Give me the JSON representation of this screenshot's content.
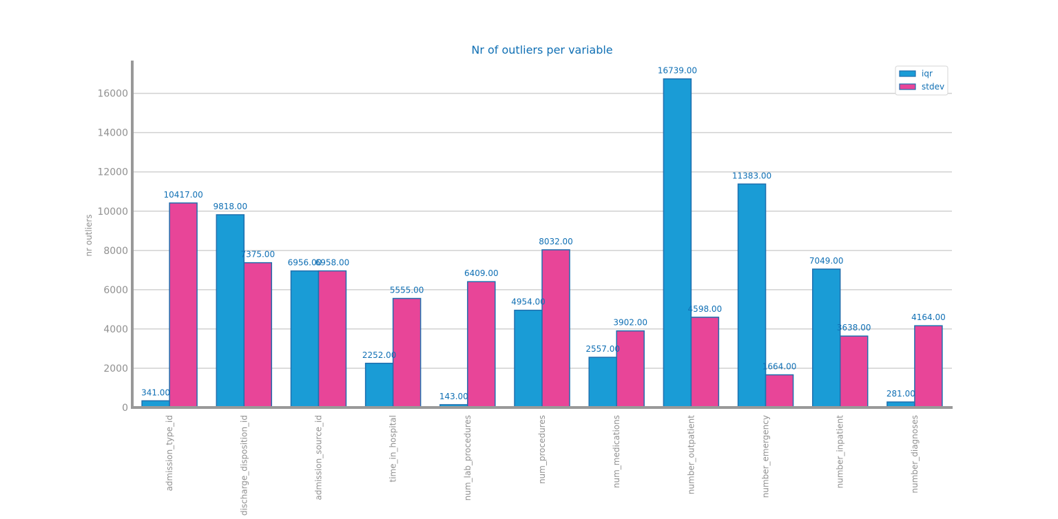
{
  "chart_data": {
    "type": "bar",
    "title": "Nr of outliers per variable",
    "xlabel": "",
    "ylabel": "nr outliers",
    "ylim": [
      0,
      17600
    ],
    "yticks": [
      0,
      2000,
      4000,
      6000,
      8000,
      10000,
      12000,
      14000,
      16000
    ],
    "grid": "horizontal",
    "legend_position": "top-right",
    "categories": [
      "admission_type_id",
      "discharge_disposition_id",
      "admission_source_id",
      "time_in_hospital",
      "num_lab_procedures",
      "num_procedures",
      "num_medications",
      "number_outpatient",
      "number_emergency",
      "number_inpatient",
      "number_diagnoses"
    ],
    "series": [
      {
        "name": "iqr",
        "color": "#1a9cd6",
        "values": [
          341,
          9818,
          6956,
          2252,
          143,
          4954,
          2557,
          16739,
          11383,
          7049,
          281
        ],
        "labels": [
          "341.00",
          "9818.00",
          "6956.00",
          "2252.00",
          "143.00",
          "4954.00",
          "2557.00",
          "16739.00",
          "11383.00",
          "7049.00",
          "281.00"
        ]
      },
      {
        "name": "stdev",
        "color": "#e84598",
        "values": [
          10417,
          7375,
          6958,
          5555,
          6409,
          8032,
          3902,
          4598,
          1664,
          3638,
          4164
        ],
        "labels": [
          "10417.00",
          "7375.00",
          "6958.00",
          "5555.00",
          "6409.00",
          "8032.00",
          "3902.00",
          "4598.00",
          "1664.00",
          "3638.00",
          "4164.00"
        ]
      }
    ],
    "colors": {
      "edge": "#1f6fae",
      "text": "#0f6fb4",
      "axis": "#999999",
      "grid": "#d0d0d0",
      "tick_text": "#909090"
    }
  }
}
